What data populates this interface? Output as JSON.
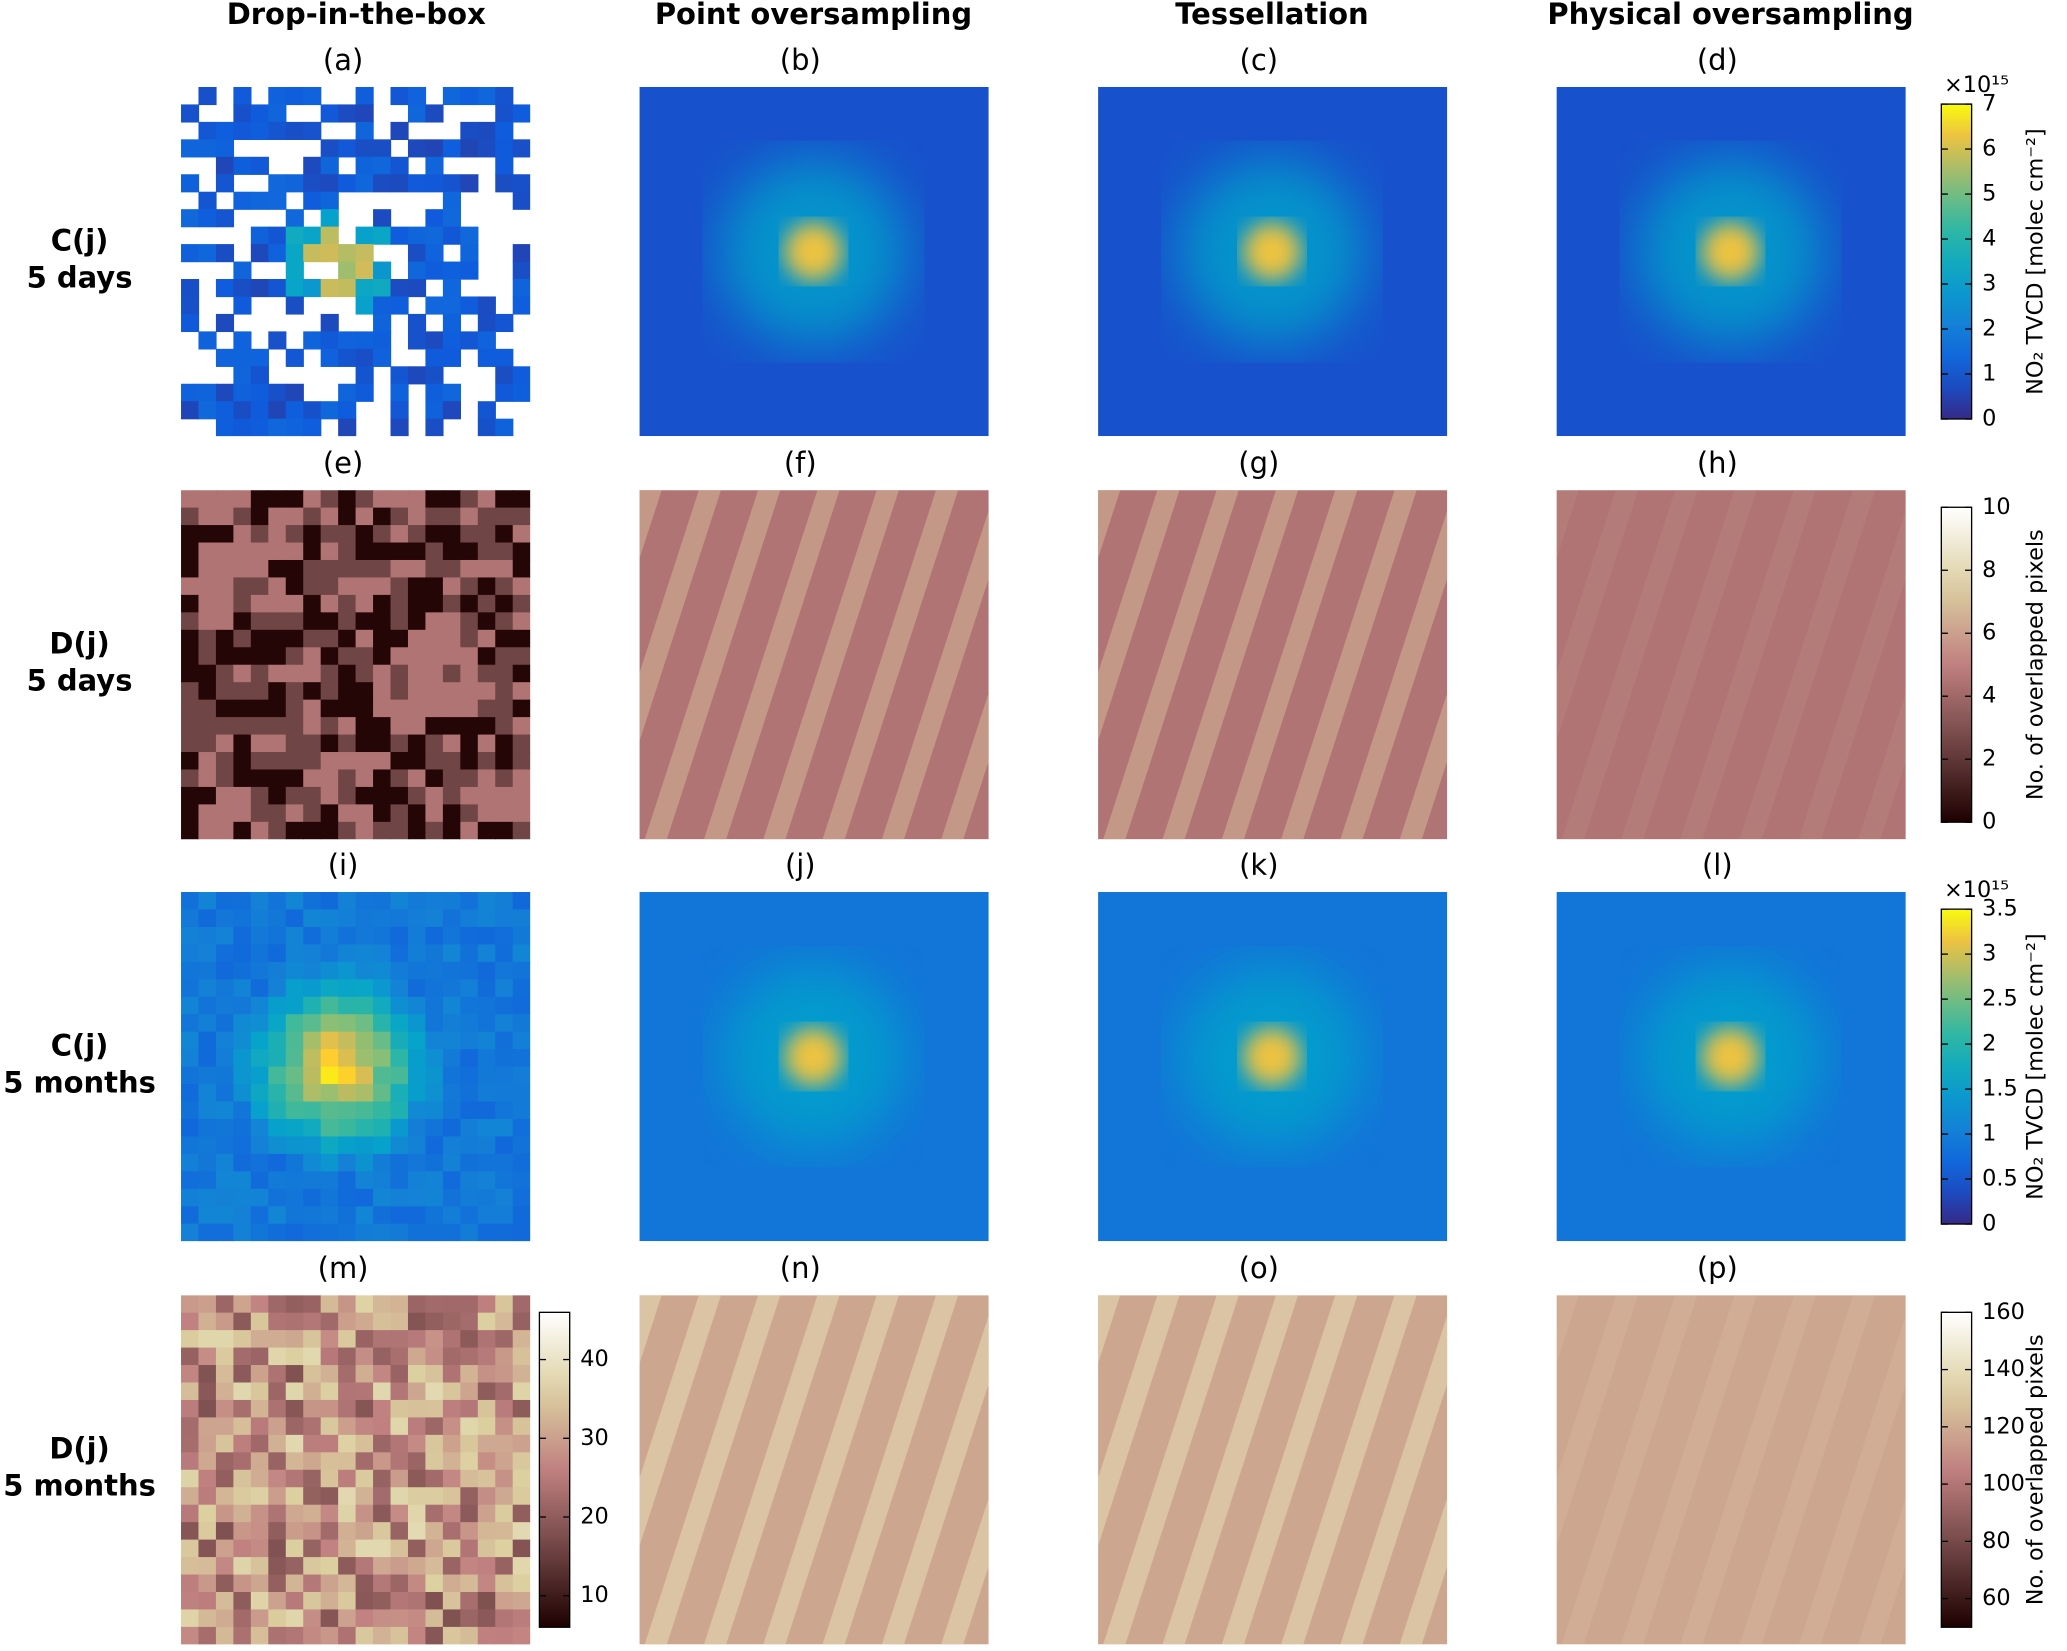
{
  "columns": [
    "Drop-in-the-box",
    "Point oversampling",
    "Tessellation",
    "Physical oversampling"
  ],
  "chart_data": [
    {
      "type": "heatmap",
      "row_label": [
        "C(j)",
        "5 days"
      ],
      "panel_labels": [
        "(a)",
        "(b)",
        "(c)",
        "(d)"
      ],
      "colormap": "parula",
      "colorbars": [
        {
          "label": "NO₂ TVCD [molec cm⁻²]",
          "exponent": "×10¹⁵",
          "ylim": [
            0,
            7
          ],
          "yticks": [
            0,
            1,
            2,
            3,
            4,
            5,
            6,
            7
          ]
        }
      ]
    },
    {
      "type": "heatmap",
      "row_label": [
        "D(j)",
        "5 days"
      ],
      "panel_labels": [
        "(e)",
        "(f)",
        "(g)",
        "(h)"
      ],
      "colormap": "pink",
      "colorbars": [
        {
          "label": "No. of overlapped pixels",
          "ylim": [
            0,
            10
          ],
          "yticks": [
            0,
            2,
            4,
            6,
            8,
            10
          ]
        }
      ]
    },
    {
      "type": "heatmap",
      "row_label": [
        "C(j)",
        "5 months"
      ],
      "panel_labels": [
        "(i)",
        "(j)",
        "(k)",
        "(l)"
      ],
      "colormap": "parula",
      "colorbars": [
        {
          "label": "NO₂ TVCD [molec cm⁻²]",
          "exponent": "×10¹⁵",
          "ylim": [
            0,
            3.5
          ],
          "yticks": [
            0,
            0.5,
            1,
            1.5,
            2,
            2.5,
            3,
            3.5
          ]
        }
      ]
    },
    {
      "type": "heatmap",
      "row_label": [
        "D(j)",
        "5 months"
      ],
      "panel_labels": [
        "(m)",
        "(n)",
        "(o)",
        "(p)"
      ],
      "colormap": "pink",
      "colorbars": [
        {
          "ylim": [
            6,
            46
          ],
          "yticks": [
            10,
            20,
            30,
            40
          ]
        },
        {
          "label": "No. of overlapped pixels",
          "ylim": [
            50,
            160
          ],
          "yticks": [
            60,
            80,
            100,
            120,
            140,
            160
          ]
        }
      ]
    }
  ]
}
